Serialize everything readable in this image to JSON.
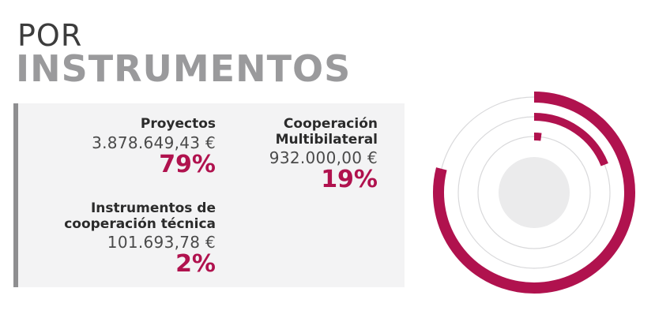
{
  "header": {
    "line1": "POR",
    "line2": "INSTRUMENTOS"
  },
  "items": [
    {
      "name_lines": [
        "Proyectos"
      ],
      "amount": "3.878.649,43 €",
      "percent": "79%"
    },
    {
      "name_lines": [
        "Cooperación",
        "Multibilateral"
      ],
      "amount": "932.000,00 €",
      "percent": "19%"
    },
    {
      "name_lines": [
        "Instrumentos de",
        "cooperación técnica"
      ],
      "amount": "101.693,78 €",
      "percent": "2%"
    }
  ],
  "colors": {
    "accent": "#b0124e",
    "ring_track": "#d9d9db",
    "center_disc": "#ebebec",
    "panel_bg": "#f3f3f4",
    "panel_bar": "#8e8e90",
    "title_dark": "#3c3c3c",
    "title_gray": "#9a9a9c"
  },
  "chart_data": {
    "type": "radial-bar",
    "title": "",
    "series": [
      {
        "name": "Proyectos",
        "value": 79,
        "amount": 3878649.43
      },
      {
        "name": "Cooperación Multibilateral",
        "value": 19,
        "amount": 932000.0
      },
      {
        "name": "Instrumentos de cooperación técnica",
        "value": 2,
        "amount": 101693.78
      }
    ],
    "unit": "%",
    "max": 100
  }
}
